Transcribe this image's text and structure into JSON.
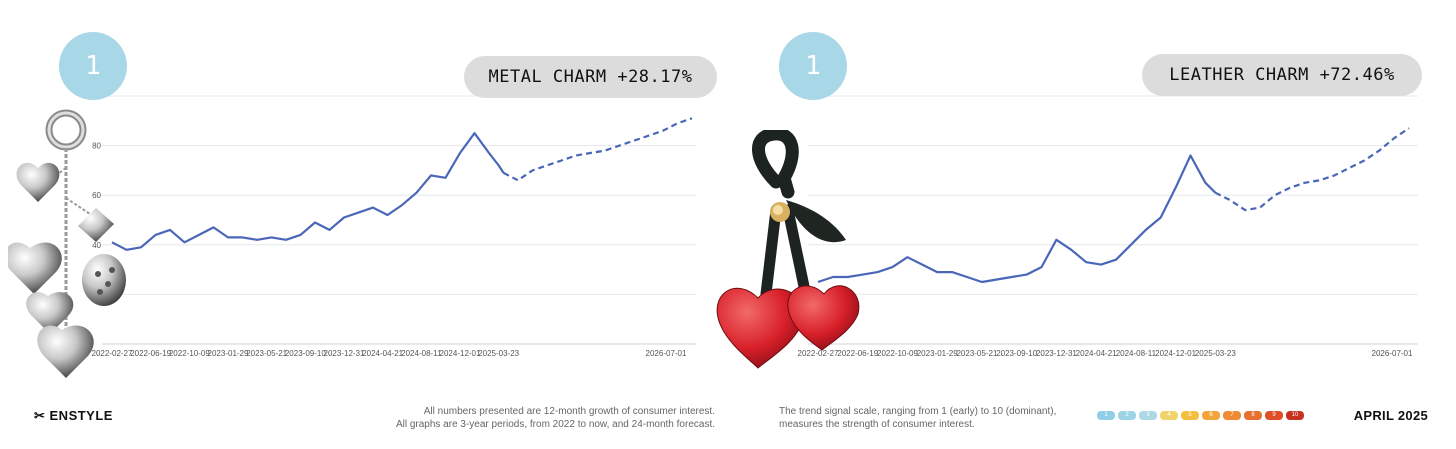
{
  "panels": [
    {
      "rank": "1",
      "title": "METAL CHARM +28.17%",
      "product_image": "silver-heart-charm-bundle",
      "y_ticks": [
        "40",
        "60",
        "80"
      ]
    },
    {
      "rank": "1",
      "title": "LEATHER CHARM +72.46%",
      "product_image": "red-leather-cherry-charm",
      "y_ticks": []
    }
  ],
  "chart_data": [
    {
      "type": "line",
      "title": "METAL CHARM +28.17%",
      "categories": [
        "2022-02-27",
        "2022-06-19",
        "2022-10-09",
        "2023-01-29",
        "2023-05-21",
        "2023-09-10",
        "2023-12-31",
        "2024-04-21",
        "2024-08-11",
        "2024-12-01",
        "2025-03-23",
        "2026-07-01"
      ],
      "ylim": [
        0,
        100
      ],
      "series": [
        {
          "style": "solid",
          "x": [
            "2022-02-27",
            "2022-04-10",
            "2022-05-22",
            "2022-07-03",
            "2022-08-14",
            "2022-09-25",
            "2022-11-06",
            "2022-12-18",
            "2023-01-29",
            "2023-03-12",
            "2023-04-23",
            "2023-06-04",
            "2023-07-16",
            "2023-08-27",
            "2023-10-08",
            "2023-11-19",
            "2023-12-31",
            "2024-02-11",
            "2024-03-24",
            "2024-05-05",
            "2024-06-16",
            "2024-07-28",
            "2024-09-08",
            "2024-10-20",
            "2024-12-01",
            "2025-01-12",
            "2025-02-23",
            "2025-03-23",
            "2025-04-06"
          ],
          "values": [
            41,
            38,
            39,
            44,
            46,
            41,
            44,
            47,
            43,
            43,
            42,
            43,
            42,
            44,
            49,
            46,
            51,
            53,
            55,
            52,
            56,
            61,
            68,
            67,
            77,
            85,
            77,
            72,
            69
          ]
        },
        {
          "style": "dashed",
          "x": [
            "2025-04-06",
            "2025-05-18",
            "2025-06-29",
            "2025-08-10",
            "2025-09-21",
            "2025-11-02",
            "2025-12-14",
            "2026-01-25",
            "2026-03-08",
            "2026-04-19",
            "2026-05-31",
            "2026-07-12",
            "2026-08-23",
            "2026-10-04"
          ],
          "values": [
            69,
            66,
            70,
            72,
            74,
            76,
            77,
            78,
            80,
            82,
            84,
            86,
            89,
            91
          ]
        }
      ]
    },
    {
      "type": "line",
      "title": "LEATHER CHARM +72.46%",
      "categories": [
        "2022-02-27",
        "2022-06-19",
        "2022-10-09",
        "2023-01-29",
        "2023-05-21",
        "2023-09-10",
        "2023-12-31",
        "2024-04-21",
        "2024-08-11",
        "2024-12-01",
        "2025-03-23",
        "2026-07-01"
      ],
      "ylim": [
        0,
        100
      ],
      "series": [
        {
          "style": "solid",
          "x": [
            "2022-02-27",
            "2022-04-10",
            "2022-05-22",
            "2022-07-03",
            "2022-08-14",
            "2022-09-25",
            "2022-11-06",
            "2022-12-18",
            "2023-01-29",
            "2023-03-12",
            "2023-04-23",
            "2023-06-04",
            "2023-07-16",
            "2023-08-27",
            "2023-10-08",
            "2023-11-19",
            "2023-12-31",
            "2024-02-11",
            "2024-03-24",
            "2024-05-05",
            "2024-06-16",
            "2024-07-28",
            "2024-09-08",
            "2024-10-20",
            "2024-12-01",
            "2025-01-12",
            "2025-02-23",
            "2025-03-23"
          ],
          "values": [
            25,
            27,
            27,
            28,
            29,
            31,
            35,
            32,
            29,
            29,
            27,
            25,
            26,
            27,
            28,
            31,
            42,
            38,
            33,
            32,
            34,
            40,
            46,
            51,
            63,
            76,
            65,
            61
          ]
        },
        {
          "style": "dashed",
          "x": [
            "2025-03-23",
            "2025-05-04",
            "2025-06-15",
            "2025-07-27",
            "2025-09-07",
            "2025-10-19",
            "2025-11-30",
            "2026-01-11",
            "2026-02-22",
            "2026-04-05",
            "2026-05-17",
            "2026-06-28",
            "2026-08-09",
            "2026-09-20"
          ],
          "values": [
            61,
            58,
            54,
            55,
            60,
            63,
            65,
            66,
            68,
            71,
            74,
            78,
            83,
            87
          ]
        }
      ]
    }
  ],
  "footer": {
    "brand": "✂ ENSTYLE",
    "note_left_1": "All numbers presented are 12-month growth of consumer interest.",
    "note_left_2": "All graphs are 3-year periods, from 2022 to now, and 24-month forecast.",
    "note_right_1": "The trend signal scale, ranging from 1 (early) to 10 (dominant),",
    "note_right_2": "measures the strength of consumer interest.",
    "date": "APRIL 2025",
    "scale_labels": [
      "1",
      "2",
      "3",
      "4",
      "5",
      "6",
      "7",
      "8",
      "9",
      "10"
    ],
    "scale_colors": [
      "#8fd0e8",
      "#9cd4e6",
      "#acd8e4",
      "#f2d36b",
      "#f4bf3e",
      "#f2a53a",
      "#ef8a36",
      "#e8702f",
      "#de4f26",
      "#c8301f"
    ]
  },
  "colors": {
    "line": "#4a66b8",
    "badge": "#a8d8e8",
    "pill": "#dcdcdc"
  }
}
